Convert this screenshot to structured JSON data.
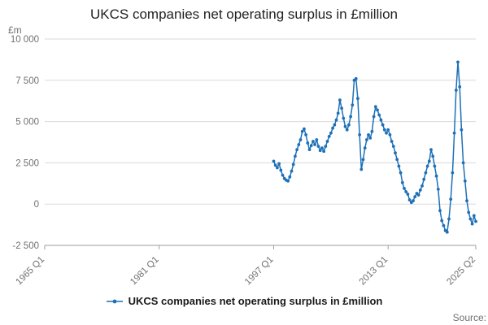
{
  "title": "UKCS companies net operating surplus in £million",
  "y_unit_label": "£m",
  "legend_label": "UKCS companies net operating surplus in £million",
  "source_label": "Source:",
  "accent_color": "#1d70b8",
  "grid_color": "#d9d9d9",
  "axis_color": "#9e9e9e",
  "chart_data": {
    "type": "line",
    "title": "UKCS companies net operating surplus in £million",
    "xlabel": "",
    "ylabel": "£m",
    "ylim": [
      -2500,
      10000
    ],
    "grid": true,
    "legend_position": "bottom",
    "color": "#1d70b8",
    "y_ticks": [
      {
        "label": "10 000",
        "value": 10000
      },
      {
        "label": "7 500",
        "value": 7500
      },
      {
        "label": "5 000",
        "value": 5000
      },
      {
        "label": "2 500",
        "value": 2500
      },
      {
        "label": "0",
        "value": 0
      },
      {
        "label": "-2 500",
        "value": -2500
      }
    ],
    "x_axis": {
      "total_quarters": 241,
      "ticks": [
        {
          "label": "1965 Q1",
          "q": 0
        },
        {
          "label": "1981 Q1",
          "q": 64
        },
        {
          "label": "1997 Q1",
          "q": 128
        },
        {
          "label": "2013 Q1",
          "q": 192
        },
        {
          "label": "2025 Q2",
          "q": 241
        }
      ]
    },
    "series_name": "UKCS companies net operating surplus in £million",
    "start": "1997 Q1",
    "end": "2025 Q2",
    "frequency": "quarterly",
    "start_quarter_index": 128,
    "values": [
      2600,
      2350,
      2200,
      2450,
      2050,
      1750,
      1550,
      1450,
      1400,
      1650,
      2000,
      2400,
      2900,
      3300,
      3600,
      3900,
      4400,
      4550,
      4200,
      3700,
      3300,
      3550,
      3800,
      3600,
      3900,
      3500,
      3250,
      3400,
      3200,
      3500,
      3800,
      4100,
      4300,
      4600,
      4800,
      5100,
      5500,
      6300,
      5800,
      5200,
      4700,
      4500,
      4800,
      5300,
      6000,
      7500,
      7600,
      6400,
      4200,
      2100,
      2700,
      3400,
      3900,
      4200,
      4000,
      4400,
      5300,
      5900,
      5700,
      5400,
      5100,
      4800,
      4500,
      4300,
      4500,
      4200,
      3800,
      3500,
      3100,
      2700,
      2300,
      1900,
      1300,
      950,
      750,
      600,
      250,
      100,
      200,
      450,
      650,
      550,
      850,
      1100,
      1500,
      1900,
      2300,
      2600,
      3300,
      2900,
      2300,
      1700,
      900,
      -400,
      -1000,
      -1300,
      -1600,
      -1700,
      -900,
      300,
      1900,
      4300,
      6900,
      8600,
      7100,
      4500,
      2500,
      1400,
      200,
      -500,
      -900,
      -1200,
      -700,
      -1050
    ]
  }
}
